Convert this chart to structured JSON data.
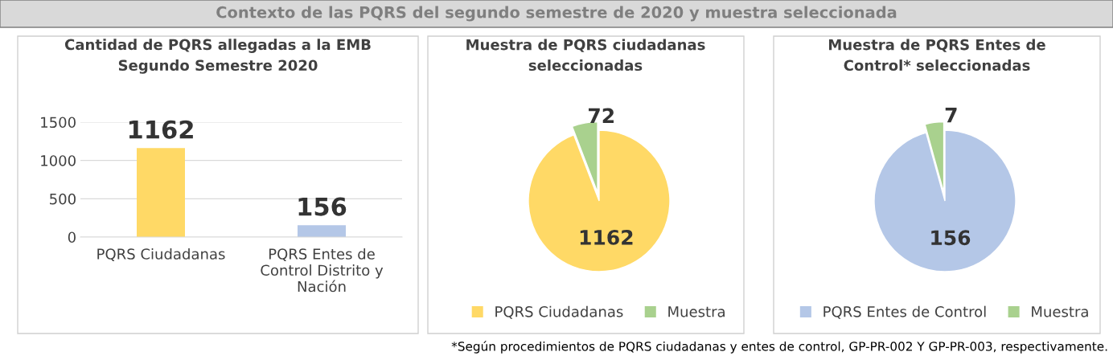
{
  "chart_data": [
    {
      "type": "bar",
      "title": "Cantidad de PQRS allegadas a la EMB\nSegundo Semestre 2020",
      "annotations": [
        "Contexto de las PQRS del segundo semestre de 2020 y muestra seleccionada"
      ],
      "categories": [
        "PQRS Ciudadanas",
        "PQRS Entes de\nControl Distrito y\nNación"
      ],
      "values": [
        1162,
        156
      ],
      "colors": [
        "#ffd966",
        "#b4c7e7"
      ],
      "ylim": [
        0,
        1500
      ],
      "yticks": [
        0,
        500,
        1000,
        1500
      ],
      "grid": "y",
      "data_labels": true
    },
    {
      "type": "pie",
      "title": "Muestra de PQRS ciudadanas\nseleccionadas",
      "categories": [
        "PQRS Ciudadanas",
        "Muestra"
      ],
      "values": [
        1162,
        72
      ],
      "colors": [
        "#ffd966",
        "#a9d18e"
      ],
      "data_labels": true,
      "legend": "bottom"
    },
    {
      "type": "pie",
      "title": "Muestra de PQRS Entes de\nControl* seleccionadas",
      "annotations": [
        "*Según procedimientos de PQRS ciudadanas y entes de control, GP-PR-002 Y GP-PR-003, respectivamente."
      ],
      "categories": [
        "PQRS Entes de Control",
        "Muestra"
      ],
      "values": [
        156,
        7
      ],
      "colors": [
        "#b4c7e7",
        "#a9d18e"
      ],
      "data_labels": true,
      "legend": "bottom"
    }
  ]
}
